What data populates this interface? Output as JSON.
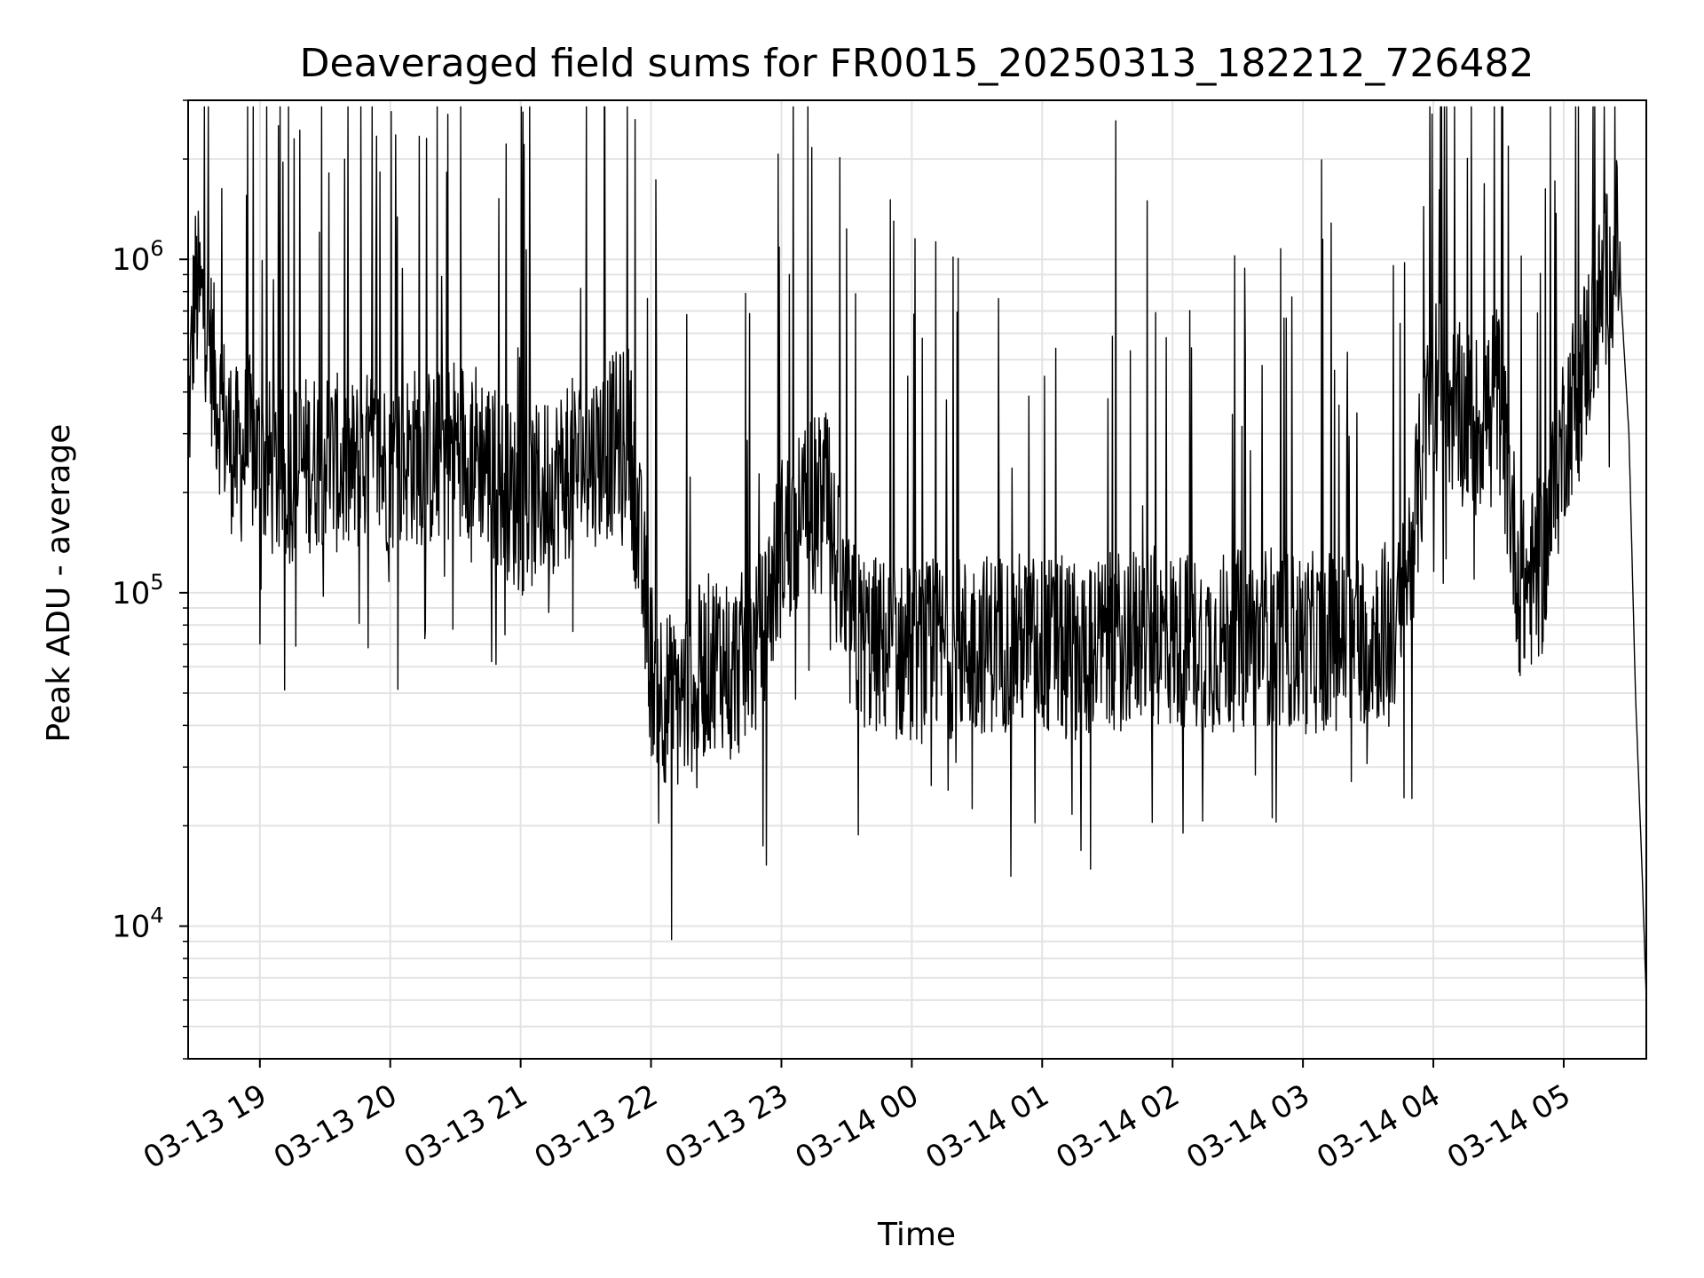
{
  "chart_data": {
    "type": "line",
    "title": "Deaveraged field sums for FR0015_20250313_182212_726482",
    "xlabel": "Time",
    "ylabel": "Peak ADU - average",
    "yscale": "log",
    "ylim": [
      4000,
      3000000
    ],
    "xlim": [
      "2025-03-13 18:27",
      "2025-03-14 05:38"
    ],
    "grid": true,
    "legend": "none",
    "line_color": "#000000",
    "x_ticks": [
      {
        "t": "2025-03-13 19:00",
        "label": "03-13 19"
      },
      {
        "t": "2025-03-13 20:00",
        "label": "03-13 20"
      },
      {
        "t": "2025-03-13 21:00",
        "label": "03-13 21"
      },
      {
        "t": "2025-03-13 22:00",
        "label": "03-13 22"
      },
      {
        "t": "2025-03-13 23:00",
        "label": "03-13 23"
      },
      {
        "t": "2025-03-14 00:00",
        "label": "03-14 00"
      },
      {
        "t": "2025-03-14 01:00",
        "label": "03-14 01"
      },
      {
        "t": "2025-03-14 02:00",
        "label": "03-14 02"
      },
      {
        "t": "2025-03-14 03:00",
        "label": "03-14 03"
      },
      {
        "t": "2025-03-14 04:00",
        "label": "03-14 04"
      },
      {
        "t": "2025-03-14 05:00",
        "label": "03-14 05"
      }
    ],
    "y_ticks": [
      {
        "value": 10000,
        "label": "10",
        "exp": "4"
      },
      {
        "value": 100000,
        "label": "10",
        "exp": "5"
      },
      {
        "value": 1000000,
        "label": "10",
        "exp": "6"
      }
    ],
    "series": [
      {
        "x": [
          "2025-03-13 18:27",
          "2025-03-13 18:30",
          "2025-03-13 18:35",
          "2025-03-13 18:40",
          "2025-03-13 18:45",
          "2025-03-13 18:50",
          "2025-03-13 18:55",
          "2025-03-13 19:00",
          "2025-03-13 19:10",
          "2025-03-13 19:20",
          "2025-03-13 19:30",
          "2025-03-13 19:40",
          "2025-03-13 19:50",
          "2025-03-13 20:00",
          "2025-03-13 20:10",
          "2025-03-13 20:20",
          "2025-03-13 20:30",
          "2025-03-13 20:40",
          "2025-03-13 20:50",
          "2025-03-13 21:00",
          "2025-03-13 21:10",
          "2025-03-13 21:20",
          "2025-03-13 21:30",
          "2025-03-13 21:40",
          "2025-03-13 21:50",
          "2025-03-13 22:00",
          "2025-03-13 22:10",
          "2025-03-13 22:20",
          "2025-03-13 22:30",
          "2025-03-13 22:40",
          "2025-03-13 22:50",
          "2025-03-13 23:00",
          "2025-03-13 23:10",
          "2025-03-13 23:20",
          "2025-03-13 23:30",
          "2025-03-13 23:40",
          "2025-03-13 23:50",
          "2025-03-14 00:00",
          "2025-03-14 00:15",
          "2025-03-14 00:30",
          "2025-03-14 00:45",
          "2025-03-14 01:00",
          "2025-03-14 01:15",
          "2025-03-14 01:30",
          "2025-03-14 01:45",
          "2025-03-14 02:00",
          "2025-03-14 02:15",
          "2025-03-14 02:30",
          "2025-03-14 02:45",
          "2025-03-14 03:00",
          "2025-03-14 03:15",
          "2025-03-14 03:30",
          "2025-03-14 03:45",
          "2025-03-14 04:00",
          "2025-03-14 04:10",
          "2025-03-14 04:20",
          "2025-03-14 04:30",
          "2025-03-14 04:40",
          "2025-03-14 04:50",
          "2025-03-14 05:00",
          "2025-03-14 05:10",
          "2025-03-14 05:20",
          "2025-03-14 05:25",
          "2025-03-14 05:30",
          "2025-03-14 05:33",
          "2025-03-14 05:36",
          "2025-03-14 05:38"
        ],
        "y": [
          300000,
          800000,
          700000,
          400000,
          300000,
          250000,
          280000,
          250000,
          220000,
          240000,
          260000,
          230000,
          250000,
          240000,
          260000,
          250000,
          280000,
          270000,
          220000,
          180000,
          200000,
          230000,
          250000,
          270000,
          300000,
          60000,
          45000,
          55000,
          65000,
          60000,
          70000,
          140000,
          170000,
          200000,
          80000,
          70000,
          68000,
          65000,
          68000,
          70000,
          72000,
          70000,
          68000,
          70000,
          75000,
          72000,
          70000,
          72000,
          75000,
          70000,
          72000,
          75000,
          80000,
          450000,
          350000,
          320000,
          400000,
          100000,
          120000,
          300000,
          500000,
          900000,
          1100000,
          300000,
          50000,
          15000,
          6000
        ]
      }
    ]
  }
}
